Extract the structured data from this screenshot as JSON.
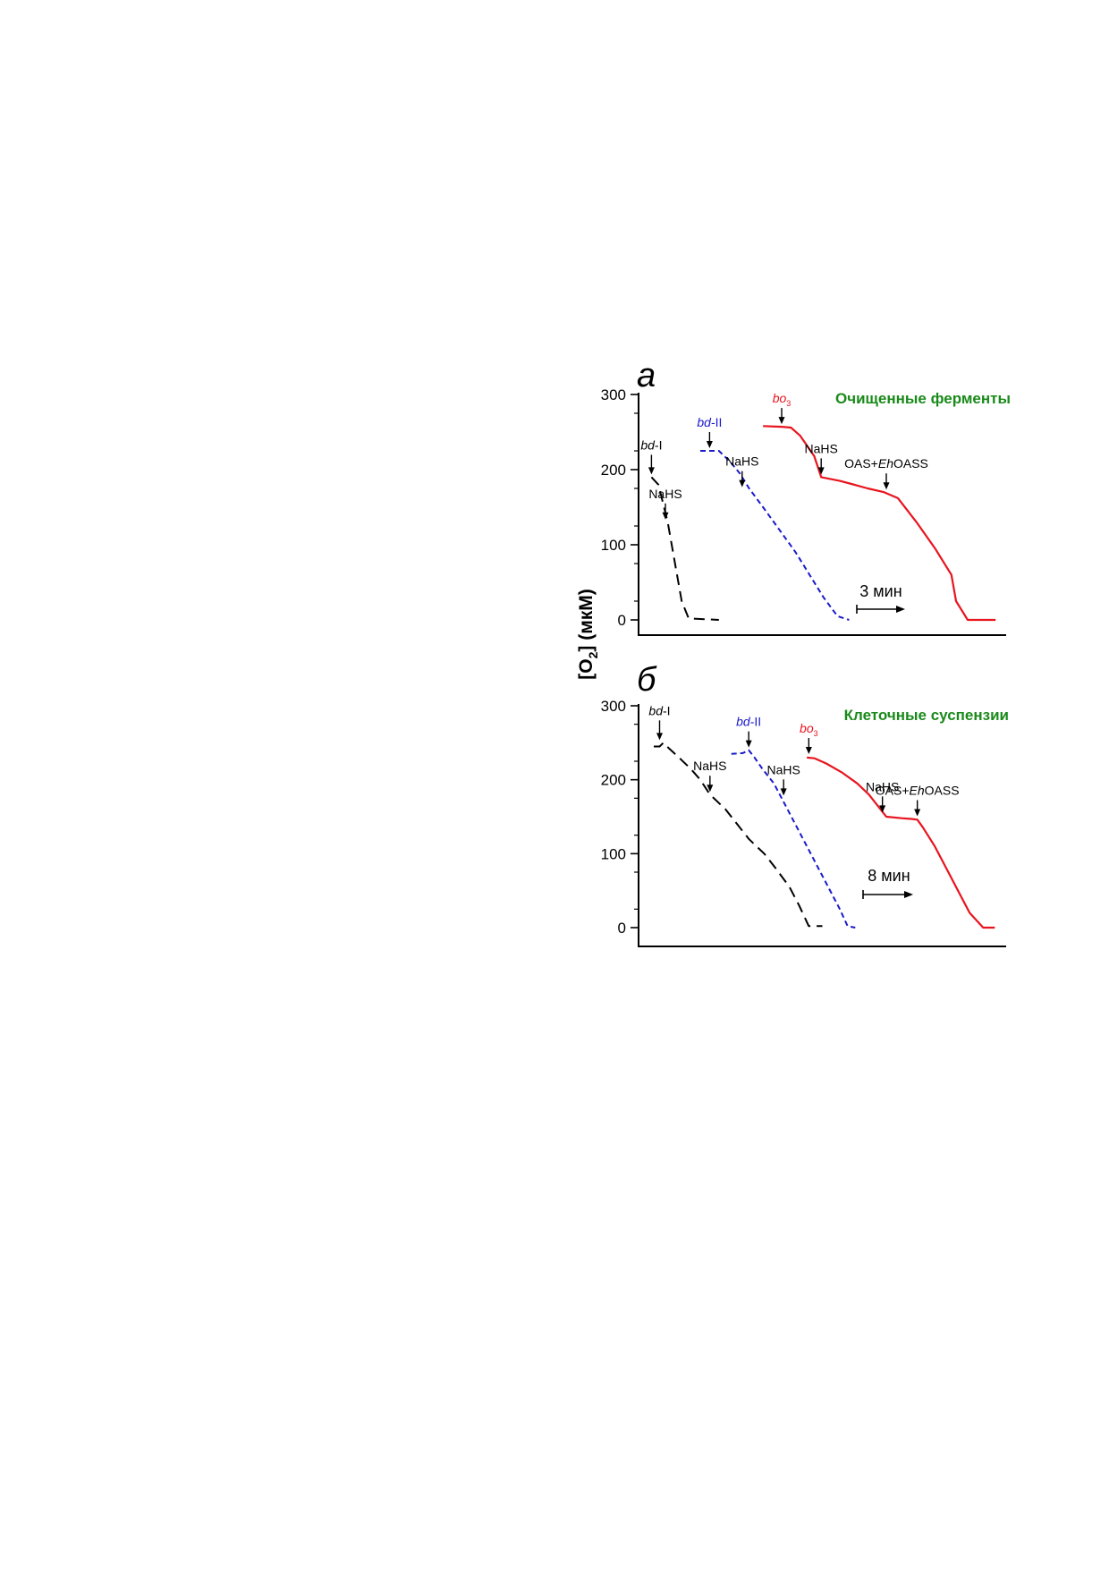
{
  "figure": {
    "ylabel_main": "[O",
    "ylabel_sub": "2",
    "ylabel_tail": "] (мкМ)"
  },
  "colors": {
    "bdI": "#000000",
    "bdII": "#1a1acc",
    "bo3": "#e8141e",
    "title": "#1a8a1a",
    "axis": "#000000"
  },
  "chart_data": [
    {
      "type": "line",
      "panel_letter": "а",
      "title": "Очищенные ферменты",
      "ylabel": "[O2] (мкМ)",
      "ylim": [
        0,
        300
      ],
      "yticks": [
        0,
        100,
        200,
        300
      ],
      "scale_bar": "3 мин",
      "series": [
        {
          "key": "bdI",
          "line": "dashed-long",
          "x": [
            0.4,
            0.7,
            0.9,
            1.1,
            1.3,
            1.5,
            1.7,
            2.0,
            3.3
          ],
          "y": [
            190,
            180,
            155,
            130,
            95,
            60,
            25,
            2,
            0
          ]
        },
        {
          "key": "bdII",
          "line": "dashed-short",
          "x": [
            2.5,
            3.3,
            3.8,
            4.2,
            4.6,
            5.2,
            5.9,
            6.6,
            7.2,
            7.8,
            8.4,
            8.9
          ],
          "y": [
            225,
            225,
            210,
            195,
            175,
            150,
            120,
            90,
            60,
            30,
            5,
            0
          ]
        },
        {
          "key": "bo3",
          "line": "solid",
          "x": [
            5.2,
            6.0,
            6.4,
            6.8,
            7.4,
            7.7,
            8.5,
            9.0,
            9.7,
            10.4,
            11.0,
            11.8,
            12.6,
            13.3,
            13.5,
            14.0,
            15.2
          ],
          "y": [
            258,
            257,
            256,
            245,
            218,
            190,
            185,
            181,
            175,
            170,
            162,
            130,
            95,
            60,
            25,
            0,
            0
          ]
        }
      ],
      "annotations": [
        {
          "key": "bdI",
          "text": "bd",
          "suffix": "-I",
          "x": 0.4,
          "y": 190
        },
        {
          "key": "bdI_nahs",
          "text": "NaHS",
          "x": 1.0,
          "y": 130
        },
        {
          "key": "bdII",
          "text": "bd",
          "suffix": "-II",
          "x": 2.9,
          "y": 225
        },
        {
          "key": "bdII_nahs",
          "text": "NaHS",
          "x": 4.3,
          "y": 173
        },
        {
          "key": "bo3",
          "text": "bo",
          "sub": "3",
          "x": 6.0,
          "y": 257
        },
        {
          "key": "bo3_nahs",
          "text": "NaHS",
          "x": 7.7,
          "y": 190
        },
        {
          "key": "bo3_oas",
          "text": "OAS+",
          "ital": "Eh",
          "tail": "OASS",
          "x": 10.5,
          "y": 170
        }
      ]
    },
    {
      "type": "line",
      "panel_letter": "б",
      "title": "Клеточные суспензии",
      "ylabel": "[O2] (мкМ)",
      "ylim": [
        0,
        300
      ],
      "yticks": [
        0,
        100,
        200,
        300
      ],
      "scale_bar": "8 мин",
      "series": [
        {
          "key": "bdI",
          "line": "dashed-long",
          "x": [
            0.6,
            0.9,
            1.1,
            1.4,
            1.9,
            2.5,
            3.0,
            3.5,
            4.3,
            4.9,
            5.5,
            6.3,
            6.9,
            7.6,
            8.1,
            8.6,
            9.3
          ],
          "y": [
            245,
            245,
            250,
            242,
            230,
            215,
            200,
            180,
            160,
            140,
            120,
            100,
            80,
            55,
            30,
            2,
            2
          ]
        },
        {
          "key": "bdII",
          "line": "dashed-short",
          "x": [
            4.6,
            5.2,
            5.5,
            5.8,
            6.2,
            6.8,
            7.3,
            7.8,
            8.4,
            9.0,
            9.6,
            10.2,
            10.6,
            11.0
          ],
          "y": [
            235,
            236,
            240,
            230,
            215,
            195,
            170,
            145,
            115,
            85,
            55,
            25,
            2,
            0
          ]
        },
        {
          "key": "bo3",
          "line": "solid",
          "x": [
            8.5,
            8.9,
            9.5,
            10.3,
            11.1,
            11.7,
            12.3,
            12.6,
            13.4,
            13.9,
            14.2,
            14.5,
            15.1,
            15.7,
            16.3,
            16.9,
            17.6,
            18.2
          ],
          "y": [
            230,
            229,
            222,
            210,
            195,
            180,
            160,
            150,
            148,
            147,
            146,
            135,
            110,
            80,
            50,
            20,
            0,
            0
          ]
        }
      ],
      "annotations": [
        {
          "key": "bdI",
          "text": "bd",
          "suffix": "-I",
          "x": 0.9,
          "y": 250
        },
        {
          "key": "bdI_nahs",
          "text": "NaHS",
          "x": 3.5,
          "y": 180
        },
        {
          "key": "bdII",
          "text": "bd",
          "suffix": "-II",
          "x": 5.5,
          "y": 240
        },
        {
          "key": "bdII_nahs",
          "text": "NaHS",
          "x": 7.3,
          "y": 175
        },
        {
          "key": "bo3",
          "text": "bo",
          "sub": "3",
          "x": 8.6,
          "y": 231
        },
        {
          "key": "bo3_nahs",
          "text": "NaHS",
          "x": 12.4,
          "y": 152
        },
        {
          "key": "bo3_oas",
          "text": "OAS+",
          "ital": "Eh",
          "tail": "OASS",
          "x": 14.2,
          "y": 147
        }
      ]
    }
  ]
}
